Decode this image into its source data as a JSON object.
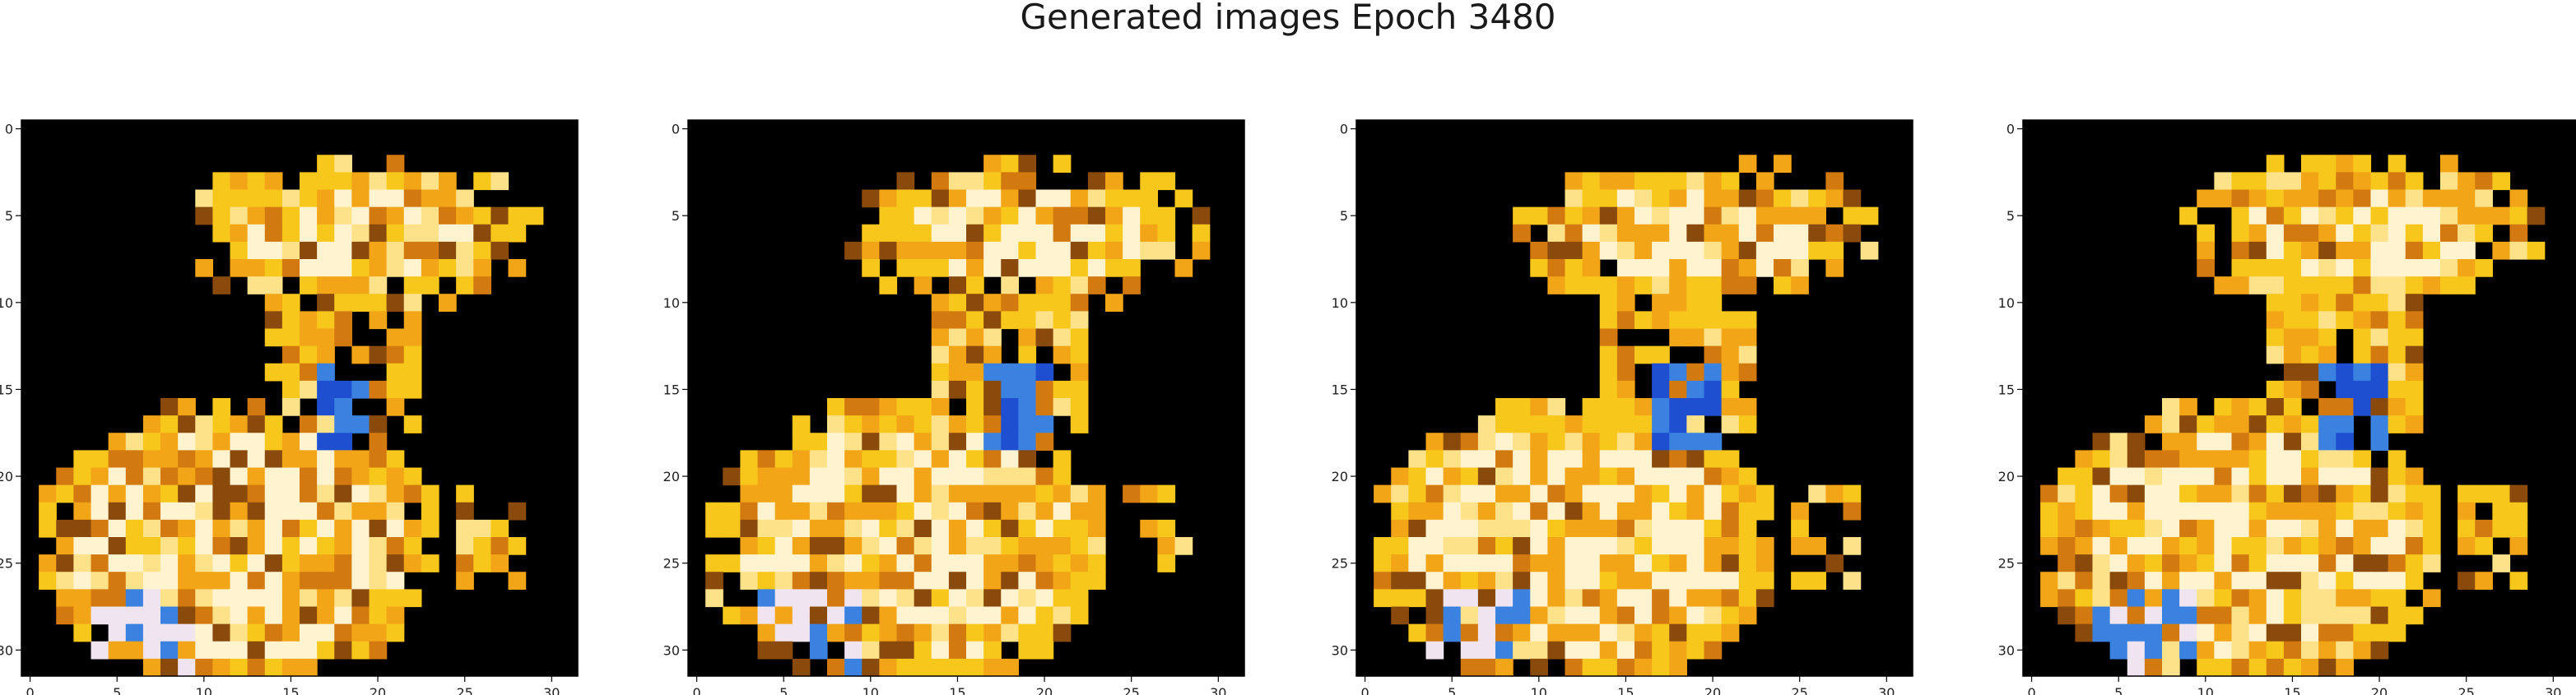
{
  "figure": {
    "title": "Generated images Epoch 3480"
  },
  "panels": [
    {
      "x_ticks": [
        "0",
        "5",
        "10",
        "15",
        "20",
        "25",
        "30"
      ],
      "y_ticks": [
        "0",
        "5",
        "10",
        "15",
        "20",
        "25",
        "30"
      ]
    },
    {
      "x_ticks": [
        "0",
        "5",
        "10",
        "15",
        "20",
        "25",
        "30"
      ],
      "y_ticks": [
        "0",
        "5",
        "10",
        "15",
        "20",
        "25",
        "30"
      ]
    },
    {
      "x_ticks": [
        "0",
        "5",
        "10",
        "15",
        "20",
        "25",
        "30"
      ],
      "y_ticks": [
        "0",
        "5",
        "10",
        "15",
        "20",
        "25",
        "30"
      ]
    },
    {
      "x_ticks": [
        "0",
        "5",
        "10",
        "15",
        "20",
        "25",
        "30"
      ],
      "y_ticks": [
        "0",
        "5",
        "10",
        "15",
        "20",
        "25",
        "30"
      ]
    }
  ],
  "image_grid": {
    "rows": 32,
    "cols": 32
  },
  "colors": {
    "background": "#000000",
    "palette": [
      "#f2a516",
      "#f8c71c",
      "#fde28a",
      "#fff4cf",
      "#d27a10",
      "#8a4a0c",
      "#3b82e0",
      "#1e4fd1",
      "#9cc6ea",
      "#f0e4f0",
      "#5a3016"
    ]
  }
}
